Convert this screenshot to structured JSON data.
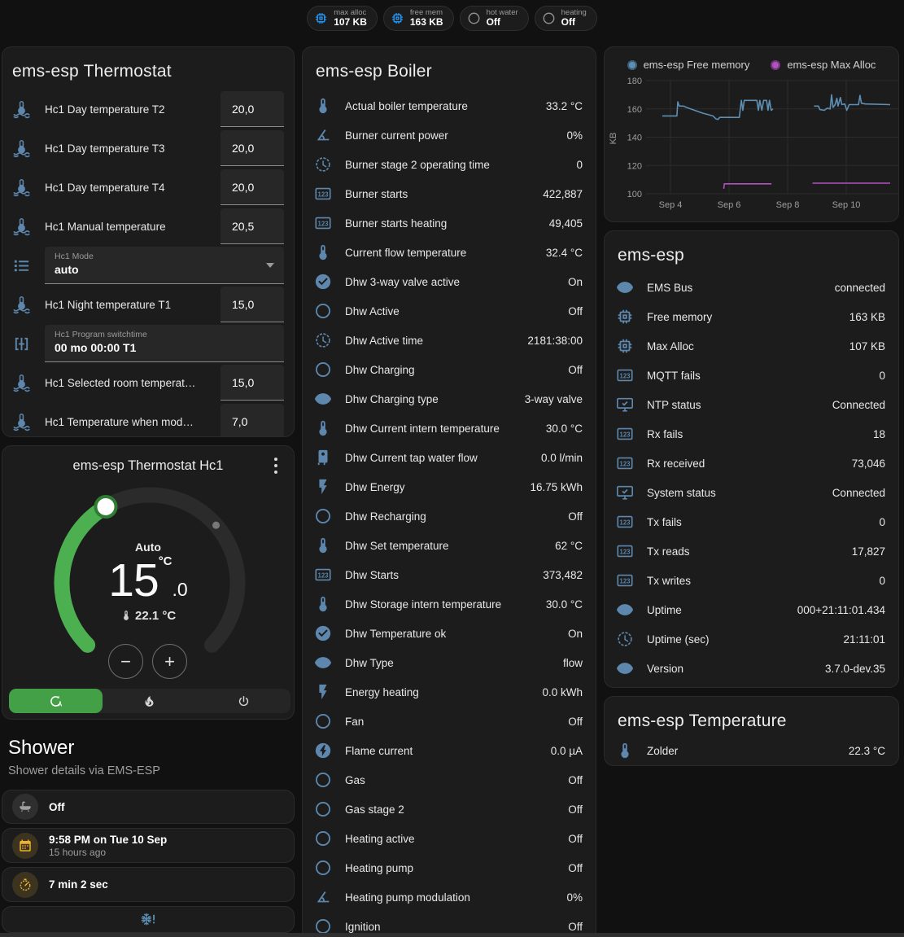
{
  "chips": [
    {
      "id": "max-alloc",
      "icon": "memory",
      "icon_color": "blue",
      "label": "max alloc",
      "value": "107 KB"
    },
    {
      "id": "free-mem",
      "icon": "memory",
      "icon_color": "blue",
      "label": "free mem",
      "value": "163 KB"
    },
    {
      "id": "hot-water",
      "icon": "circle-outline",
      "icon_color": "gray",
      "label": "hot water",
      "value": "Off"
    },
    {
      "id": "heating",
      "icon": "circle-outline",
      "icon_color": "gray",
      "label": "heating",
      "value": "Off"
    }
  ],
  "thermostat_card": {
    "title": "ems-esp Thermostat",
    "rows": [
      {
        "icon": "thermometer-water",
        "label": "Hc1 Day temperature T2",
        "control": "number",
        "value": "20,0"
      },
      {
        "icon": "thermometer-water",
        "label": "Hc1 Day temperature T3",
        "control": "number",
        "value": "20,0"
      },
      {
        "icon": "thermometer-water",
        "label": "Hc1 Day temperature T4",
        "control": "number",
        "value": "20,0"
      },
      {
        "icon": "thermometer-water",
        "label": "Hc1 Manual temperature",
        "control": "number",
        "value": "20,5"
      },
      {
        "icon": "format-list",
        "control": "select",
        "field_label": "Hc1 Mode",
        "value": "auto"
      },
      {
        "icon": "thermometer-water",
        "label": "Hc1 Night temperature T1",
        "control": "number",
        "value": "15,0"
      },
      {
        "icon": "pipe-valve",
        "control": "text",
        "field_label": "Hc1 Program switchtime",
        "value": "00 mo 00:00 T1"
      },
      {
        "icon": "thermometer-water",
        "label": "Hc1 Selected room temperat…",
        "control": "number",
        "value": "15,0"
      },
      {
        "icon": "thermometer-water",
        "label": "Hc1 Temperature when mod…",
        "control": "number",
        "value": "7,0"
      }
    ]
  },
  "hc1_card": {
    "title": "ems-esp Thermostat Hc1",
    "mode_label": "Auto",
    "target": "15",
    "target_fraction": ".0",
    "unit": "°C",
    "current_temperature": "22.1 °C",
    "modes": [
      {
        "id": "auto",
        "icon": "auto-mode",
        "active": true
      },
      {
        "id": "heat",
        "icon": "fire",
        "active": false
      },
      {
        "id": "off",
        "icon": "power",
        "active": false
      }
    ],
    "accent_green": "#43a047"
  },
  "shower": {
    "title": "Shower",
    "subtitle": "Shower details via EMS-ESP",
    "items": [
      {
        "icon": "bathtub",
        "color": "gray",
        "primary": "Off",
        "secondary": ""
      },
      {
        "icon": "calendar",
        "color": "amber",
        "primary": "9:58 PM on Tue 10 Sep",
        "secondary": "15 hours ago"
      },
      {
        "icon": "timer",
        "color": "amber",
        "primary": "7 min 2 sec",
        "secondary": ""
      },
      {
        "icon": "snowflake-alert",
        "color": "blue",
        "primary": "",
        "secondary": "",
        "centered": true
      }
    ]
  },
  "boiler_card": {
    "title": "ems-esp Boiler",
    "rows": [
      {
        "icon": "thermometer",
        "label": "Actual boiler temperature",
        "value": "33.2 °C"
      },
      {
        "icon": "angle-acute",
        "label": "Burner current power",
        "value": "0%"
      },
      {
        "icon": "clock",
        "label": "Burner stage 2 operating time",
        "value": "0"
      },
      {
        "icon": "counter",
        "label": "Burner starts",
        "value": "422,887"
      },
      {
        "icon": "counter",
        "label": "Burner starts heating",
        "value": "49,405"
      },
      {
        "icon": "thermometer",
        "label": "Current flow temperature",
        "value": "32.4 °C"
      },
      {
        "icon": "check-circle",
        "label": "Dhw 3-way valve active",
        "value": "On"
      },
      {
        "icon": "circle-outline",
        "label": "Dhw Active",
        "value": "Off"
      },
      {
        "icon": "clock",
        "label": "Dhw Active time",
        "value": "2181:38:00"
      },
      {
        "icon": "circle-outline",
        "label": "Dhw Charging",
        "value": "Off"
      },
      {
        "icon": "eye",
        "label": "Dhw Charging type",
        "value": "3-way valve"
      },
      {
        "icon": "thermometer",
        "label": "Dhw Current intern temperature",
        "value": "30.0 °C"
      },
      {
        "icon": "water-boiler",
        "label": "Dhw Current tap water flow",
        "value": "0.0 l/min"
      },
      {
        "icon": "flash",
        "label": "Dhw Energy",
        "value": "16.75 kWh"
      },
      {
        "icon": "circle-outline",
        "label": "Dhw Recharging",
        "value": "Off"
      },
      {
        "icon": "thermometer",
        "label": "Dhw Set temperature",
        "value": "62 °C"
      },
      {
        "icon": "counter",
        "label": "Dhw Starts",
        "value": "373,482"
      },
      {
        "icon": "thermometer",
        "label": "Dhw Storage intern temperature",
        "value": "30.0 °C"
      },
      {
        "icon": "check-circle",
        "label": "Dhw Temperature ok",
        "value": "On"
      },
      {
        "icon": "eye",
        "label": "Dhw Type",
        "value": "flow"
      },
      {
        "icon": "flash",
        "label": "Energy heating",
        "value": "0.0 kWh"
      },
      {
        "icon": "circle-outline",
        "label": "Fan",
        "value": "Off"
      },
      {
        "icon": "flash-circle",
        "label": "Flame current",
        "value": "0.0 µA"
      },
      {
        "icon": "circle-outline",
        "label": "Gas",
        "value": "Off"
      },
      {
        "icon": "circle-outline",
        "label": "Gas stage 2",
        "value": "Off"
      },
      {
        "icon": "circle-outline",
        "label": "Heating active",
        "value": "Off"
      },
      {
        "icon": "circle-outline",
        "label": "Heating pump",
        "value": "Off"
      },
      {
        "icon": "angle-acute",
        "label": "Heating pump modulation",
        "value": "0%"
      },
      {
        "icon": "circle-outline",
        "label": "Ignition",
        "value": "Off"
      }
    ]
  },
  "emsesp_card": {
    "title": "ems-esp",
    "rows": [
      {
        "icon": "eye",
        "label": "EMS Bus",
        "value": "connected"
      },
      {
        "icon": "memory",
        "label": "Free memory",
        "value": "163 KB"
      },
      {
        "icon": "memory",
        "label": "Max Alloc",
        "value": "107 KB"
      },
      {
        "icon": "counter",
        "label": "MQTT fails",
        "value": "0"
      },
      {
        "icon": "monitor-check",
        "label": "NTP status",
        "value": "Connected"
      },
      {
        "icon": "counter",
        "label": "Rx fails",
        "value": "18"
      },
      {
        "icon": "counter",
        "label": "Rx received",
        "value": "73,046"
      },
      {
        "icon": "monitor-check",
        "label": "System status",
        "value": "Connected"
      },
      {
        "icon": "counter",
        "label": "Tx fails",
        "value": "0"
      },
      {
        "icon": "counter",
        "label": "Tx reads",
        "value": "17,827"
      },
      {
        "icon": "counter",
        "label": "Tx writes",
        "value": "0"
      },
      {
        "icon": "eye",
        "label": "Uptime",
        "value": "000+21:11:01.434"
      },
      {
        "icon": "clock",
        "label": "Uptime (sec)",
        "value": "21:11:01"
      },
      {
        "icon": "eye",
        "label": "Version",
        "value": "3.7.0-dev.35"
      }
    ]
  },
  "temperature_card": {
    "title": "ems-esp Temperature",
    "rows": [
      {
        "icon": "thermometer",
        "label": "Zolder",
        "value": "22.3 °C"
      }
    ]
  },
  "chart_data": {
    "type": "line",
    "title": "",
    "xlabel": "",
    "ylabel": "KB",
    "ylim": [
      100,
      180
    ],
    "yticks": [
      100,
      120,
      140,
      160,
      180
    ],
    "xtick_labels": [
      "Sep 4",
      "Sep 6",
      "Sep 8",
      "Sep 10"
    ],
    "xtick_days": [
      4,
      6,
      8,
      10
    ],
    "grid": true,
    "legend_position": "top",
    "series": [
      {
        "name": "ems-esp Free memory",
        "color": "#5d8fb3",
        "unit": "KB",
        "segments": [
          [
            [
              3.72,
              155
            ],
            [
              4.22,
              155
            ],
            [
              4.25,
              165
            ],
            [
              4.3,
              162
            ],
            [
              4.45,
              162
            ],
            [
              4.55,
              161
            ],
            [
              5.1,
              157
            ],
            [
              5.45,
              155
            ],
            [
              5.55,
              153
            ],
            [
              5.62,
              152.5
            ],
            [
              5.68,
              154
            ],
            [
              6.35,
              154
            ],
            [
              6.42,
              166
            ],
            [
              6.47,
              159
            ],
            [
              6.52,
              166
            ],
            [
              6.95,
              166
            ],
            [
              7.0,
              159
            ],
            [
              7.05,
              166
            ],
            [
              7.12,
              159
            ],
            [
              7.18,
              166
            ],
            [
              7.28,
              166
            ],
            [
              7.33,
              159
            ],
            [
              7.38,
              166
            ],
            [
              7.44,
              159
            ],
            [
              7.5,
              160
            ]
          ],
          [
            [
              8.9,
              162
            ],
            [
              9.05,
              162
            ],
            [
              9.1,
              159.5
            ],
            [
              9.25,
              159
            ],
            [
              9.35,
              160.5
            ],
            [
              9.45,
              160
            ],
            [
              9.5,
              170
            ],
            [
              9.55,
              161
            ],
            [
              9.62,
              163
            ],
            [
              9.68,
              167.5
            ],
            [
              9.72,
              162
            ],
            [
              9.8,
              168
            ],
            [
              9.85,
              163
            ],
            [
              9.95,
              163.5
            ],
            [
              10.02,
              159
            ],
            [
              10.1,
              163
            ],
            [
              10.42,
              163
            ],
            [
              10.47,
              169.5
            ],
            [
              10.52,
              164
            ],
            [
              10.65,
              163.5
            ],
            [
              11.5,
              163
            ]
          ]
        ]
      },
      {
        "name": "ems-esp Max Alloc",
        "color": "#b052be",
        "unit": "KB",
        "segments": [
          [
            [
              5.82,
              103.5
            ],
            [
              5.84,
              107
            ],
            [
              7.45,
              107
            ]
          ],
          [
            [
              8.85,
              107.5
            ],
            [
              11.5,
              107.5
            ]
          ]
        ]
      }
    ]
  }
}
